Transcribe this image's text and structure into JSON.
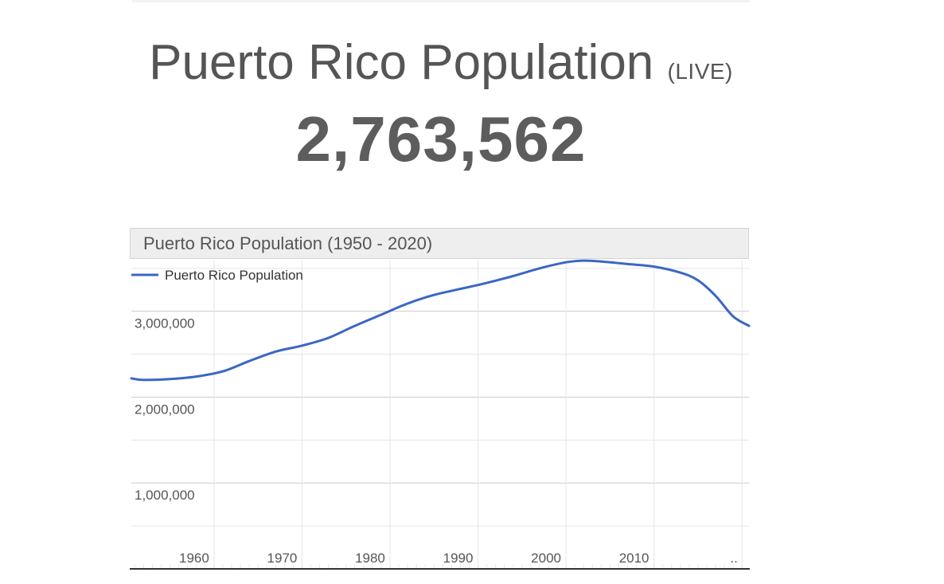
{
  "header": {
    "title": "Puerto Rico Population",
    "live_label": "(LIVE)",
    "live_count": "2,763,562"
  },
  "chart_header": {
    "title": "Puerto Rico Population (1950 - 2020)"
  },
  "colors": {
    "series_line": "#3b66c4",
    "grid": "#e6e6e6",
    "grid_major": "#cccccc",
    "text": "#555555"
  },
  "chart_data": {
    "type": "line",
    "title": "Puerto Rico Population (1950 - 2020)",
    "xlabel": "",
    "ylabel": "",
    "legend": [
      "Puerto Rico Population"
    ],
    "legend_position": "top-left",
    "grid": true,
    "xlim": [
      1950.6,
      2020.8
    ],
    "ylim": [
      0,
      3600000
    ],
    "x_ticks": [
      1960,
      1970,
      1980,
      1990,
      2000,
      2010
    ],
    "x_ticks_labels": [
      "1960",
      "1970",
      "1980",
      "1990",
      "2000",
      "2010"
    ],
    "x_more_label": "..",
    "y_ticks": [
      1000000,
      2000000,
      3000000
    ],
    "y_ticks_labels": [
      "1,000,000",
      "2,000,000",
      "3,000,000"
    ],
    "series": [
      {
        "name": "Puerto Rico Population",
        "x": [
          1950.6,
          1952,
          1955,
          1958,
          1961,
          1964,
          1967,
          1970,
          1973,
          1976,
          1979,
          1982,
          1985,
          1988,
          1991,
          1994,
          1997,
          2000,
          2002,
          2004,
          2007,
          2010,
          2013,
          2015,
          2017,
          2019,
          2020.8
        ],
        "y": [
          2218000,
          2200000,
          2210000,
          2240000,
          2300000,
          2420000,
          2530000,
          2600000,
          2690000,
          2830000,
          2960000,
          3090000,
          3190000,
          3260000,
          3330000,
          3410000,
          3500000,
          3570000,
          3590000,
          3580000,
          3550000,
          3520000,
          3450000,
          3360000,
          3180000,
          2940000,
          2830000
        ]
      }
    ]
  }
}
